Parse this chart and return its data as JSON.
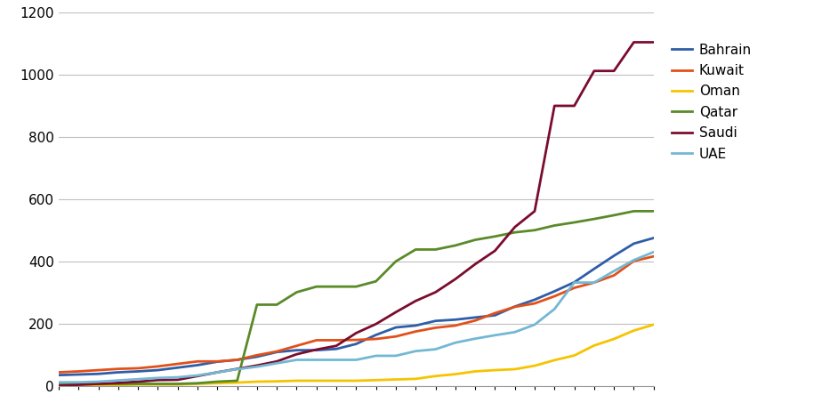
{
  "series": {
    "Bahrain": [
      36,
      38,
      40,
      45,
      48,
      52,
      60,
      68,
      79,
      85,
      95,
      110,
      116,
      116,
      120,
      136,
      165,
      189,
      195,
      210,
      214,
      221,
      228,
      256,
      278,
      305,
      334,
      377,
      419,
      458,
      476
    ],
    "Kuwait": [
      45,
      48,
      52,
      56,
      58,
      64,
      72,
      80,
      80,
      85,
      100,
      112,
      130,
      148,
      148,
      149,
      152,
      160,
      176,
      188,
      195,
      211,
      235,
      255,
      266,
      289,
      316,
      333,
      356,
      402,
      417
    ],
    "Oman": [
      4,
      4,
      4,
      4,
      6,
      6,
      6,
      8,
      10,
      12,
      15,
      16,
      18,
      18,
      18,
      18,
      20,
      22,
      24,
      33,
      39,
      48,
      52,
      55,
      66,
      84,
      99,
      131,
      152,
      179,
      198
    ],
    "Qatar": [
      8,
      8,
      8,
      8,
      8,
      8,
      8,
      10,
      15,
      18,
      262,
      262,
      302,
      320,
      320,
      320,
      337,
      401,
      439,
      439,
      452,
      470,
      481,
      494,
      501,
      516,
      526,
      537,
      549,
      562,
      562
    ],
    "Saudi": [
      2,
      5,
      8,
      11,
      15,
      20,
      21,
      33,
      45,
      56,
      67,
      80,
      103,
      118,
      130,
      171,
      200,
      238,
      274,
      302,
      344,
      392,
      435,
      511,
      562,
      900,
      900,
      1012,
      1012,
      1104,
      1104
    ],
    "UAE": [
      13,
      13,
      15,
      19,
      23,
      27,
      29,
      35,
      45,
      55,
      63,
      74,
      85,
      85,
      85,
      85,
      98,
      98,
      113,
      119,
      140,
      153,
      164,
      174,
      198,
      248,
      333,
      333,
      370,
      405,
      431
    ]
  },
  "colors": {
    "Bahrain": "#2E5EA8",
    "Kuwait": "#E2501A",
    "Oman": "#F5C400",
    "Qatar": "#5A8A28",
    "Saudi": "#7B0C2E",
    "UAE": "#72B8D4"
  },
  "ylim": [
    0,
    1200
  ],
  "yticks": [
    0,
    200,
    400,
    600,
    800,
    1000,
    1200
  ],
  "line_width": 2.0,
  "bg_color": "#FFFFFF",
  "grid_color": "#BFBFBF",
  "legend_fontsize": 11,
  "tick_fontsize": 11
}
